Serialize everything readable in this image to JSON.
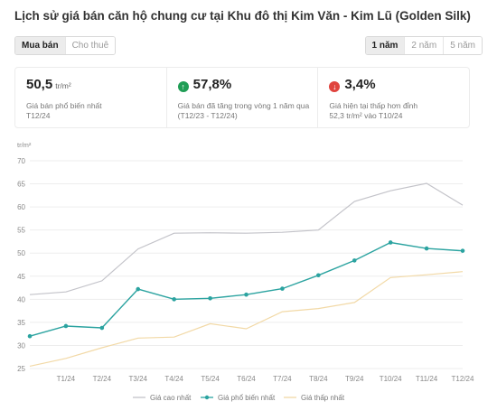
{
  "title": "Lịch sử giá bán căn hộ chung cư tại Khu đô thị Kim Văn - Kim Lũ (Golden Silk)",
  "tabs": {
    "sell": "Mua bán",
    "rent": "Cho thuê"
  },
  "ranges": [
    "1 năm",
    "2 năm",
    "5 năm"
  ],
  "stats": {
    "common": {
      "value": "50,5",
      "unit": "tr/m²",
      "desc1": "Giá bán phổ biến nhất",
      "desc2": "T12/24"
    },
    "increase": {
      "value": "57,8%",
      "desc1": "Giá bán đã tăng trong vòng 1 năm qua",
      "desc2": "(T12/23 - T12/24)"
    },
    "decrease": {
      "value": "3,4%",
      "desc1": "Giá hiện tại thấp hơn đỉnh",
      "desc2": "52,3 tr/m² vào T10/24"
    }
  },
  "colors": {
    "high": "#c3c3c9",
    "common": "#2ba3a0",
    "low": "#f2d9a6",
    "up": "#1f9d55",
    "down": "#e0443e"
  },
  "chart_data": {
    "type": "line",
    "ylabel": "tr/m²",
    "ylim": [
      25,
      70
    ],
    "yticks": [
      25,
      30,
      35,
      40,
      45,
      50,
      55,
      60,
      65,
      70
    ],
    "grid": true,
    "legend_position": "bottom",
    "x": [
      "",
      "T1/24",
      "T2/24",
      "T3/24",
      "T4/24",
      "T5/24",
      "T6/24",
      "T7/24",
      "T8/24",
      "T9/24",
      "T10/24",
      "T11/24",
      "T12/24"
    ],
    "series": [
      {
        "name": "Giá cao nhất",
        "values": [
          41.0,
          41.6,
          44.0,
          50.9,
          54.3,
          54.4,
          54.3,
          54.5,
          55.0,
          61.2,
          63.5,
          65.1,
          60.4
        ]
      },
      {
        "name": "Giá phổ biến nhất",
        "values": [
          32.0,
          34.2,
          33.8,
          42.2,
          40.0,
          40.2,
          41.0,
          42.3,
          45.2,
          48.4,
          52.3,
          51.0,
          50.5
        ]
      },
      {
        "name": "Giá thấp nhất",
        "values": [
          25.5,
          27.2,
          29.5,
          31.6,
          31.8,
          34.7,
          33.6,
          37.3,
          38.0,
          39.3,
          44.7,
          45.3,
          46.0
        ]
      }
    ]
  }
}
